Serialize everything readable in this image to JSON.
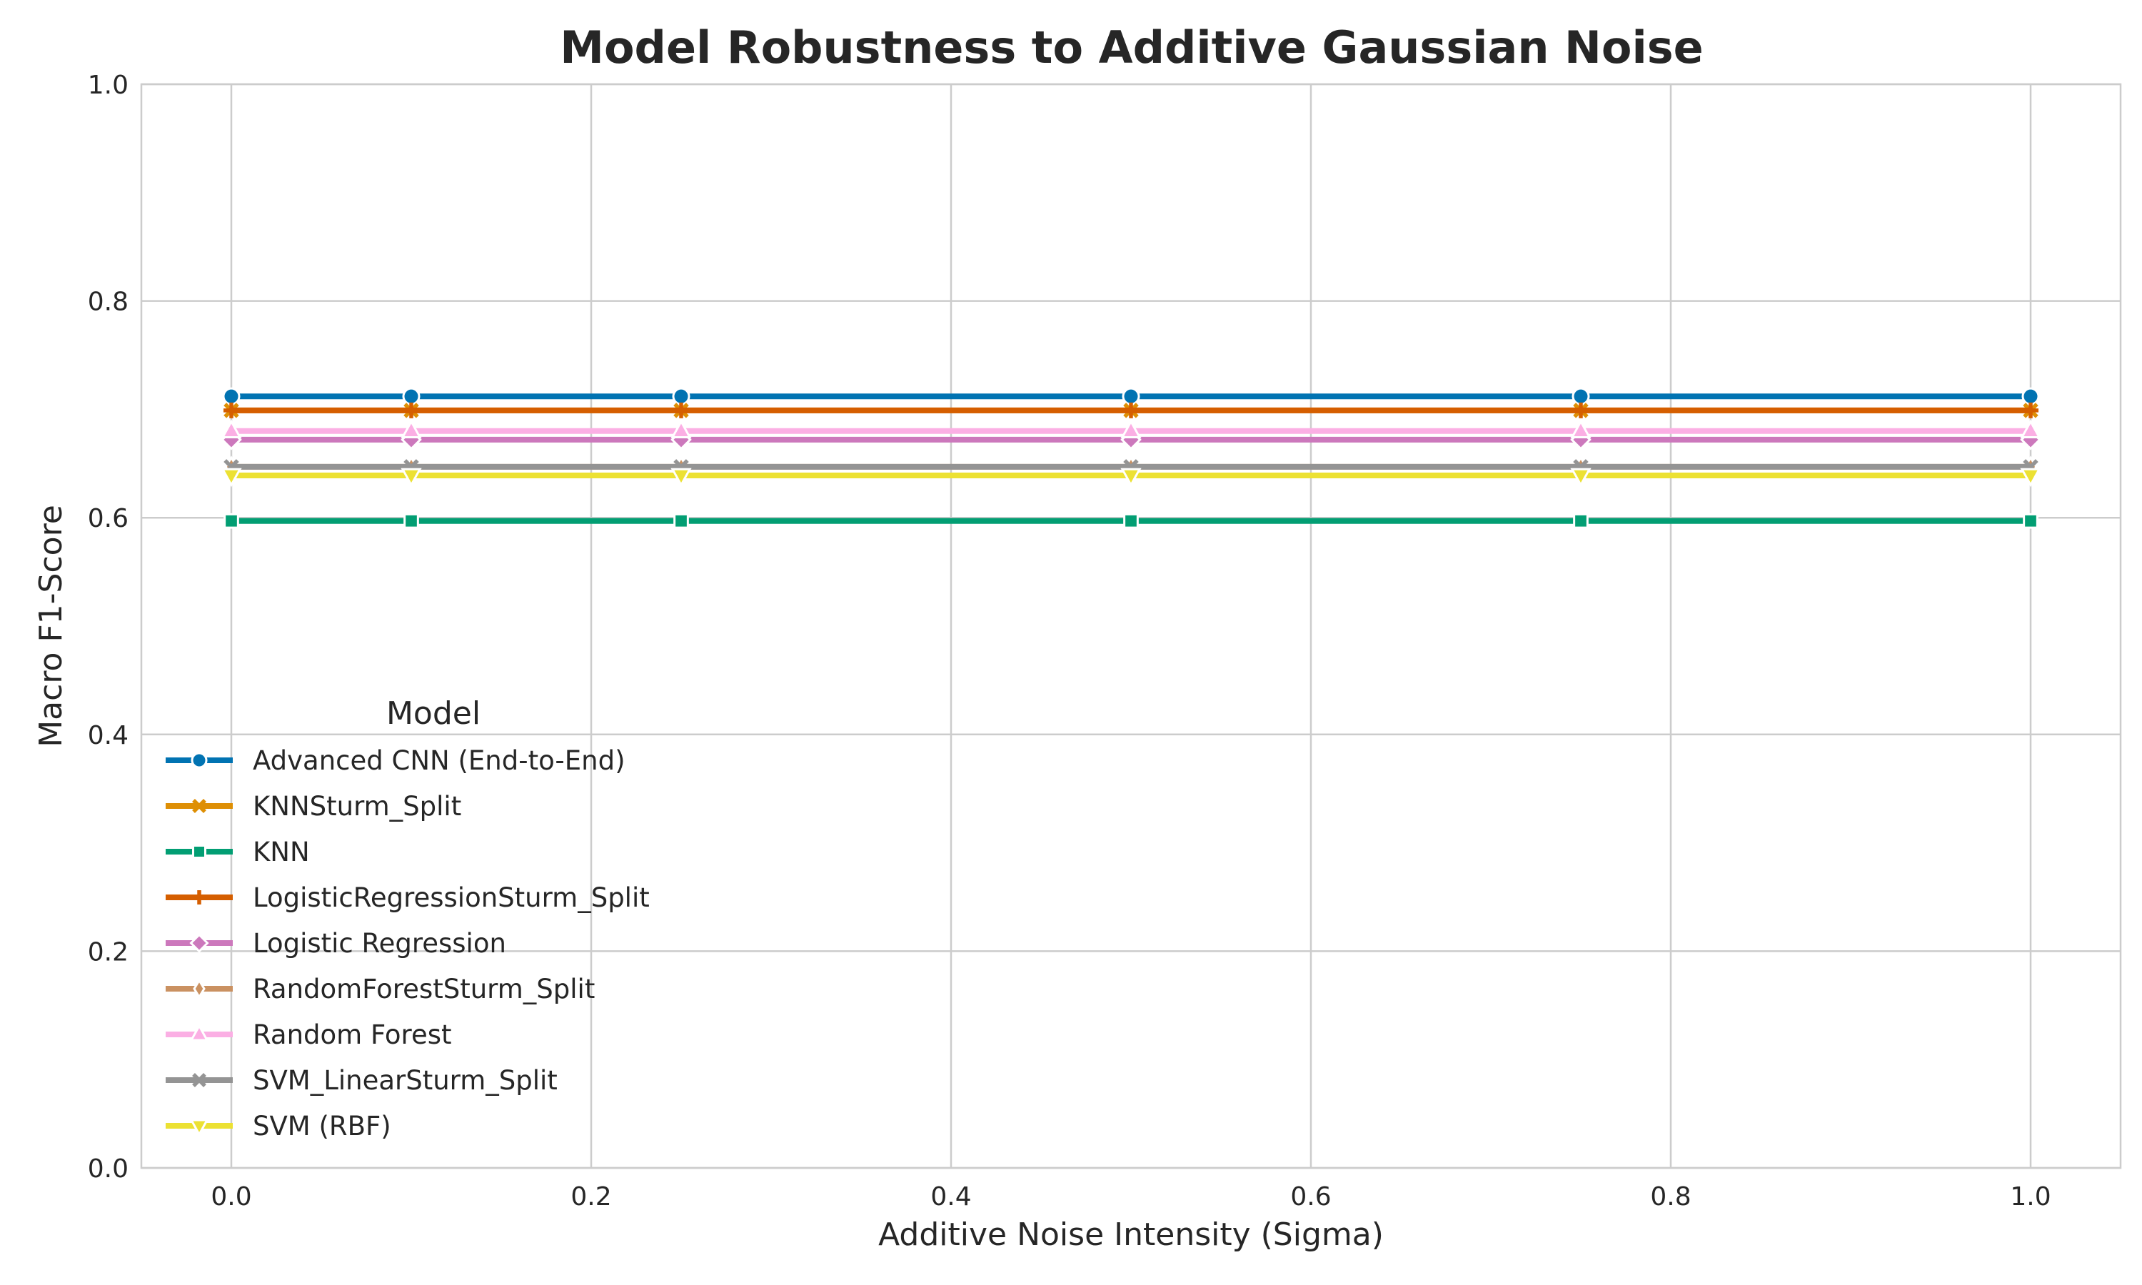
{
  "chart_data": {
    "type": "line",
    "title": "Model Robustness to Additive Gaussian Noise",
    "xlabel": "Additive Noise Intensity (Sigma)",
    "ylabel": "Macro F1-Score",
    "x": [
      0.0,
      0.1,
      0.25,
      0.5,
      0.75,
      1.0
    ],
    "xlim": [
      -0.05,
      1.05
    ],
    "ylim": [
      0.0,
      1.0
    ],
    "xticks": [
      0.0,
      0.2,
      0.4,
      0.6,
      0.8,
      1.0
    ],
    "xtick_labels": [
      "0.0",
      "0.2",
      "0.4",
      "0.6",
      "0.8",
      "1.0"
    ],
    "yticks": [
      0.0,
      0.2,
      0.4,
      0.6,
      0.8,
      1.0
    ],
    "ytick_labels": [
      "0.0",
      "0.2",
      "0.4",
      "0.6",
      "0.8",
      "1.0"
    ],
    "grid": true,
    "legend": {
      "title": "Model",
      "placement": "lower-left"
    },
    "series": [
      {
        "name": "Advanced CNN (End-to-End)",
        "color": "#0173b2",
        "marker": "circle",
        "values": [
          0.712,
          0.712,
          0.712,
          0.712,
          0.712,
          0.712
        ]
      },
      {
        "name": "KNNSturm_Split",
        "color": "#de8f05",
        "marker": "x",
        "values": [
          0.699,
          0.699,
          0.699,
          0.699,
          0.699,
          0.699
        ]
      },
      {
        "name": "KNN",
        "color": "#029e73",
        "marker": "square",
        "values": [
          0.597,
          0.597,
          0.597,
          0.597,
          0.597,
          0.597
        ]
      },
      {
        "name": "LogisticRegressionSturm_Split",
        "color": "#d55e00",
        "marker": "plus",
        "values": [
          0.699,
          0.699,
          0.699,
          0.699,
          0.699,
          0.699
        ]
      },
      {
        "name": "Logistic Regression",
        "color": "#cc78bc",
        "marker": "diamond",
        "values": [
          0.672,
          0.672,
          0.672,
          0.672,
          0.672,
          0.672
        ]
      },
      {
        "name": "RandomForestSturm_Split",
        "color": "#ca9161",
        "marker": "thin-diamond",
        "values": [
          0.647,
          0.647,
          0.647,
          0.647,
          0.647,
          0.647
        ]
      },
      {
        "name": "Random Forest",
        "color": "#fbafe4",
        "marker": "triangle-up",
        "values": [
          0.68,
          0.68,
          0.68,
          0.68,
          0.68,
          0.68
        ]
      },
      {
        "name": "SVM_LinearSturm_Split",
        "color": "#949494",
        "marker": "x",
        "values": [
          0.647,
          0.647,
          0.647,
          0.647,
          0.647,
          0.647
        ]
      },
      {
        "name": "SVM (RBF)",
        "color": "#ece133",
        "marker": "triangle-down",
        "values": [
          0.639,
          0.639,
          0.639,
          0.639,
          0.639,
          0.639
        ]
      }
    ]
  }
}
